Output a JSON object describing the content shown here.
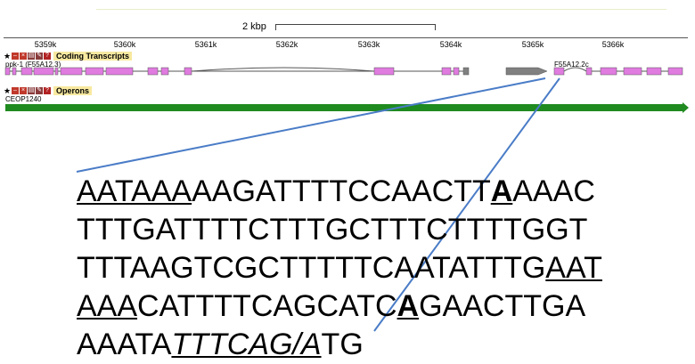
{
  "browser": {
    "scale_label": "2 kbp",
    "ruler_ticks": [
      "5359k",
      "5360k",
      "5361k",
      "5362k",
      "5363k",
      "5364k",
      "5365k",
      "5366k"
    ],
    "coding_track": {
      "title": "Coding Transcripts",
      "gene_left": "ppk-1 (F55A12.3)",
      "gene_right": "F55A12.2c"
    },
    "operon_track": {
      "title": "Operons",
      "operon_label": "CEOP1240"
    },
    "colors": {
      "exon": "#e07be0",
      "utr": "#808080",
      "operon": "#1f8a1f",
      "pointer_line": "#4a7cc7"
    }
  },
  "sequence": {
    "line1": [
      {
        "t": "AATAAA",
        "u": true
      },
      {
        "t": "AAGATTTTCCAACTT"
      },
      {
        "t": "A",
        "u": true,
        "b": true
      },
      {
        "t": "AAAC"
      }
    ],
    "line2": [
      {
        "t": "TTTGATTTTCTTTGCTTTCTTTTGGT"
      }
    ],
    "line3": [
      {
        "t": "TTTAAGTCGCTTTTTCAATATTTG"
      },
      {
        "t": "AAT",
        "u": true
      }
    ],
    "line4": [
      {
        "t": "AAA",
        "u": true
      },
      {
        "t": "CATTTTCAGCATC"
      },
      {
        "t": "A",
        "u": true,
        "b": true
      },
      {
        "t": "GAACTTGA"
      }
    ],
    "line5": [
      {
        "t": "AAATA"
      },
      {
        "t": "TTTCAG/A",
        "u": true,
        "i": true
      },
      {
        "t": "TG"
      }
    ]
  }
}
